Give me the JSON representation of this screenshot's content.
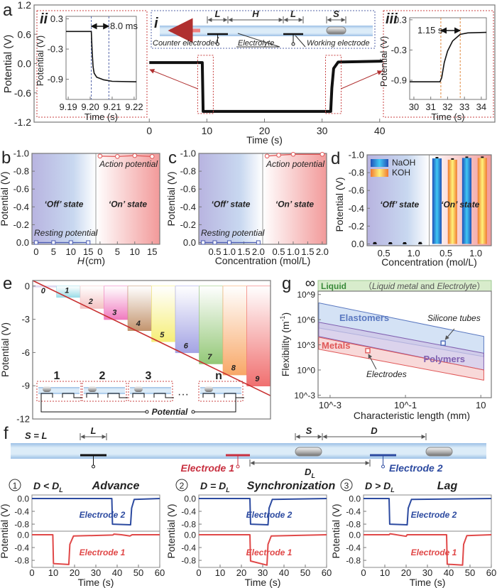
{
  "panel_labels": {
    "a": "a",
    "b": "b",
    "c": "c",
    "d": "d",
    "e": "e",
    "f": "f",
    "g": "g"
  },
  "inset_labels": {
    "i": "i",
    "ii": "ii",
    "iii": "iii"
  },
  "diagram_i": {
    "dims": [
      "L",
      "H",
      "L",
      "S"
    ],
    "counter_electrode": "Counter electrode",
    "electrolyte": "Electrolyte",
    "working_electrode": "Working electrode"
  },
  "diagram_e": {
    "units": [
      "1",
      "2",
      "3",
      "n"
    ],
    "ellipsis": "···",
    "potential": "Potential"
  },
  "diagram_f": {
    "s_eq_l": "S = L",
    "dim_L": "L",
    "dim_S": "S",
    "dim_D": "D",
    "dim_DL": "D",
    "dim_DL_sub": "L",
    "electrode1": "Electrode 1",
    "electrode2": "Electrode 2"
  },
  "colors": {
    "electrode1": "#e04848",
    "electrode2": "#2c4aa0",
    "trace": "#111111",
    "off_state": "#b4b4e0",
    "on_state": "#f29a9a",
    "naoh": "#2aa8e8",
    "koh": "#f8b040",
    "liquid": "#d8eccc"
  },
  "chart_data": [
    {
      "id": "a",
      "type": "line",
      "xlabel": "Time (s)",
      "ylabel": "Potential (V)",
      "xlim": [
        -20,
        60
      ],
      "ylim": [
        -1.2,
        1.2
      ],
      "xticks": [
        0,
        10,
        20,
        30,
        40
      ],
      "xtick_labels": [
        "0",
        "10",
        "20",
        "30",
        "40"
      ],
      "yticks": [
        1.2,
        0.6,
        0.0,
        -0.6,
        -1.2
      ],
      "ytick_labels": [
        "1.2",
        "0.6",
        "0.0",
        "-0.6",
        "-1.2"
      ],
      "series": [
        {
          "color": "#111111",
          "points": [
            [
              0,
              0.02
            ],
            [
              9.2,
              0.02
            ],
            [
              9.35,
              -0.98
            ],
            [
              31.5,
              -0.98
            ],
            [
              31.7,
              -0.5
            ],
            [
              32.0,
              -0.1
            ],
            [
              32.8,
              0.03
            ],
            [
              40.5,
              0.05
            ]
          ]
        }
      ]
    },
    {
      "id": "a_ii",
      "type": "line",
      "xlabel": "Time (s)",
      "ylabel": "Potential (V)",
      "xlim": [
        9.189,
        9.221
      ],
      "ylim": [
        -1.3,
        0.35
      ],
      "xticks": [
        9.19,
        9.2,
        9.21,
        9.22
      ],
      "xtick_labels": [
        "9.19",
        "9.20",
        "9.21",
        "9.22"
      ],
      "yticks": [
        0.3,
        -0.3,
        -0.9
      ],
      "ytick_labels": [
        "0.3",
        "-0.3",
        "-0.9"
      ],
      "annotation": "8.0 ms",
      "markers_x": [
        9.2005,
        9.2085
      ],
      "series": [
        {
          "color": "#111111",
          "points": [
            [
              9.189,
              0.05
            ],
            [
              9.2005,
              0.05
            ],
            [
              9.2009,
              -0.35
            ],
            [
              9.2013,
              -0.65
            ],
            [
              9.2018,
              -0.78
            ],
            [
              9.203,
              -0.86
            ],
            [
              9.206,
              -0.91
            ],
            [
              9.21,
              -0.94
            ],
            [
              9.221,
              -0.95
            ]
          ]
        }
      ]
    },
    {
      "id": "a_iii",
      "type": "line",
      "xlabel": "Time (s)",
      "ylabel": "Potential (V)",
      "xlim": [
        29.75,
        34.3
      ],
      "ylim": [
        -1.28,
        0.34
      ],
      "xticks": [
        30,
        31,
        32,
        33,
        34
      ],
      "xtick_labels": [
        "30",
        "31",
        "32",
        "33",
        "34"
      ],
      "yticks": [
        0.3,
        -0.3,
        -0.9
      ],
      "ytick_labels": [
        "0.3",
        "-0.3",
        "-0.9"
      ],
      "annotation": "1.15 s",
      "markers_x": [
        31.6,
        32.75
      ],
      "series": [
        {
          "color": "#111111",
          "points": [
            [
              29.75,
              -0.93
            ],
            [
              31.55,
              -0.93
            ],
            [
              31.65,
              -0.85
            ],
            [
              31.8,
              -0.55
            ],
            [
              32.0,
              -0.32
            ],
            [
              32.3,
              -0.12
            ],
            [
              32.75,
              0.01
            ],
            [
              33.2,
              0.04
            ],
            [
              34.3,
              0.05
            ]
          ]
        }
      ]
    },
    {
      "id": "b",
      "type": "line",
      "xlabel": "H",
      "xlabel_unit": " (cm)",
      "ylabel": "Potential (V)",
      "ylim": [
        0.02,
        -1.0
      ],
      "yticks": [
        -1.0,
        -0.8,
        -0.6,
        -0.4,
        -0.2,
        0.0
      ],
      "ytick_labels": [
        "-1.0",
        "-0.8",
        "-0.6",
        "-0.4",
        "-0.2",
        "0.0"
      ],
      "half_xlim": [
        -1.2,
        17.2
      ],
      "xticks": [
        0,
        5,
        10,
        15
      ],
      "xtick_labels": [
        "0",
        "5",
        "10",
        "15"
      ],
      "groups": [
        {
          "state": "‘Off’ state",
          "series": {
            "name": "Resting potential",
            "color": "#4a5ab0",
            "marker": "square",
            "x": [
              0,
              5,
              10,
              15
            ],
            "y": [
              0,
              0,
              0,
              0
            ]
          }
        },
        {
          "state": "‘On’ state",
          "series": {
            "name": "Action potential",
            "color": "#e05858",
            "marker": "circle",
            "x": [
              0,
              5,
              10,
              15
            ],
            "y": [
              -0.97,
              -0.965,
              -0.975,
              -0.965
            ]
          }
        }
      ]
    },
    {
      "id": "c",
      "type": "line",
      "xlabel": "Concentration (mol/L)",
      "ylabel": "Potential (V)",
      "ylim": [
        0.02,
        -1.0
      ],
      "yticks": [
        -1.0,
        -0.8,
        -0.6,
        -0.4,
        -0.2,
        0.0
      ],
      "ytick_labels": [
        "-1.0",
        "-0.8",
        "-0.6",
        "-0.4",
        "-0.2",
        "0.0"
      ],
      "half_xlim": [
        -0.05,
        2.15
      ],
      "xticks": [
        0.5,
        1.0,
        1.5,
        2.0
      ],
      "xtick_labels": [
        "0.5",
        "1.0",
        "1.5",
        "2.0"
      ],
      "groups": [
        {
          "state": "‘Off’ state",
          "series": {
            "name": "Resting potential",
            "color": "#4a5ab0",
            "marker": "square",
            "x": [
              0.1,
              0.5,
              1.0,
              2.0
            ],
            "y": [
              0,
              0,
              0,
              0
            ]
          }
        },
        {
          "state": "‘On’ state",
          "series": {
            "name": "Action potential",
            "color": "#e05858",
            "marker": "circle",
            "x": [
              0.1,
              0.5,
              1.0,
              2.0
            ],
            "y": [
              -0.97,
              -0.98,
              -0.99,
              -0.99
            ]
          }
        }
      ]
    },
    {
      "id": "d",
      "type": "bar",
      "xlabel": "Concentration (mol/L)",
      "ylabel": "Potential (V)",
      "ylim": [
        0.02,
        -1.0
      ],
      "yticks": [
        -1.0,
        -0.8,
        -0.6,
        -0.4,
        -0.2,
        0.0
      ],
      "ytick_labels": [
        "-1.0",
        "-0.8",
        "-0.6",
        "-0.4",
        "-0.2",
        "0.0"
      ],
      "categories": [
        "0.5",
        "1.0"
      ],
      "legend": [
        {
          "name": "NaOH",
          "color": "#2aa8e8"
        },
        {
          "name": "KOH",
          "color": "#f8b040"
        }
      ],
      "legend_placement": "top-left",
      "groups": [
        {
          "state": "‘Off’ state",
          "series": [
            {
              "name": "NaOH",
              "values": [
                -0.005,
                -0.004
              ]
            },
            {
              "name": "KOH",
              "values": [
                -0.004,
                -0.006
              ]
            }
          ]
        },
        {
          "state": "‘On’ state",
          "series": [
            {
              "name": "NaOH",
              "values": [
                -0.96,
                -0.965
              ]
            },
            {
              "name": "KOH",
              "values": [
                -0.945,
                -0.965
              ]
            }
          ]
        }
      ]
    },
    {
      "id": "e",
      "type": "bar",
      "ylabel": "Potential (V)",
      "ylim": [
        -12,
        0.5
      ],
      "yticks": [
        0,
        -3,
        -6,
        -9,
        -12
      ],
      "ytick_labels": [
        "0",
        "-3",
        "-6",
        "-9",
        "-12"
      ],
      "categories": [
        "0",
        "1",
        "2",
        "3",
        "4",
        "5",
        "6",
        "7",
        "8",
        "9"
      ],
      "values": [
        0,
        -1,
        -2,
        -3,
        -4,
        -5,
        -6,
        -7,
        -8,
        -9
      ],
      "bar_colors": [
        "#dcd4ee",
        "#9edde8",
        "#f4c4c4",
        "#f07cc0",
        "#c49670",
        "#f6ee78",
        "#a4a4e4",
        "#94c878",
        "#f8a868",
        "#f07070"
      ],
      "trend_line": {
        "color": "#c83030",
        "points": [
          [
            0,
            0.5
          ],
          [
            10,
            -9.9
          ]
        ]
      }
    },
    {
      "id": "g",
      "type": "scatter",
      "xlabel": "Characteristic length (mm)",
      "ylabel": "Flexibility (m",
      "ylabel_sup": "-1",
      "ylabel_end": ")",
      "xscale": "log",
      "yscale": "log",
      "xlim": [
        0.00048,
        19
      ],
      "ylim": [
        0.0005,
        2500000000.0
      ],
      "xticks": [
        0.001,
        0.1,
        10
      ],
      "xtick_labels": [
        "10^-3",
        "10^-1",
        "10"
      ],
      "yticks": [
        1000000000.0,
        1000000.0,
        1000.0,
        1,
        0.001
      ],
      "ytick_labels": [
        "10^9",
        "10^6",
        "10^3",
        "10^0",
        "10^-3"
      ],
      "infinity_label": "∞",
      "liquid_band": {
        "label": "Liquid",
        "note_open": "（",
        "note_italic1": "Liquid metal",
        "note_mid": " and ",
        "note_italic2": "Electrolyte",
        "note_close": "）"
      },
      "regions": [
        {
          "name": "Elastomers",
          "color": "#5a78c0",
          "fill": "#c6d8f2",
          "points": [
            [
              0.0005,
              100000000.0
            ],
            [
              12,
              10000.0
            ],
            [
              12,
              40
            ],
            [
              0.0005,
              100000.0
            ]
          ]
        },
        {
          "name": "Polymers",
          "color": "#8060b0",
          "fill": "#cfc4e6",
          "points": [
            [
              0.0005,
              500000.0
            ],
            [
              12,
              100
            ],
            [
              12,
              1
            ],
            [
              0.0005,
              10000.0
            ]
          ]
        },
        {
          "name": "Metals",
          "color": "#e05858",
          "fill": "#f6cccc",
          "points": [
            [
              0.0005,
              8000.0
            ],
            [
              12,
              1
            ],
            [
              12,
              0.06
            ],
            [
              0.0005,
              300
            ]
          ]
        }
      ],
      "points": [
        {
          "name": "Silicone tubes",
          "x": 1.0,
          "y": 1600,
          "color": "#4a68b8"
        },
        {
          "name": "Electrodes",
          "x": 0.01,
          "y": 200,
          "color": "#e05858"
        }
      ]
    },
    {
      "id": "f1",
      "type": "line",
      "index": "1",
      "condition": "D < D",
      "condition_sub": "L",
      "title": "Advance",
      "xlabel": "Time (s)",
      "ylabel": "Potential (V)",
      "xlim": [
        0,
        60
      ],
      "ylim": [
        -1.02,
        0.11
      ],
      "xticks": [
        0,
        10,
        20,
        30,
        40,
        50,
        60
      ],
      "xtick_labels": [
        "0",
        "10",
        "20",
        "30",
        "40",
        "50",
        "60"
      ],
      "yticks": [
        0.0,
        -0.4,
        -0.8
      ],
      "ytick_labels": [
        "0.0",
        "-0.4",
        "-0.8"
      ],
      "series": [
        {
          "name": "Electrode 2",
          "color": "#2c4aa0",
          "points": [
            [
              0,
              0
            ],
            [
              37.5,
              0
            ],
            [
              37.8,
              -0.8
            ],
            [
              46.3,
              -0.82
            ],
            [
              46.8,
              -0.3
            ],
            [
              48,
              -0.03
            ],
            [
              60,
              0
            ]
          ]
        },
        {
          "name": "Electrode 1",
          "color": "#e04848",
          "points": [
            [
              0,
              0
            ],
            [
              9.8,
              0
            ],
            [
              10.1,
              -0.9
            ],
            [
              17.3,
              -0.93
            ],
            [
              17.8,
              -0.3
            ],
            [
              19.5,
              -0.04
            ],
            [
              38,
              -0.01
            ],
            [
              38.5,
              0.02
            ],
            [
              42,
              0
            ],
            [
              46,
              -0.04
            ],
            [
              47,
              0
            ],
            [
              60,
              0
            ]
          ]
        }
      ]
    },
    {
      "id": "f2",
      "type": "line",
      "index": "2",
      "condition": "D = D",
      "condition_sub": "L",
      "title": "Synchronization",
      "xlabel": "Time (s)",
      "ylabel": "Potential (V)",
      "xlim": [
        0,
        60
      ],
      "ylim": [
        -1.02,
        0.11
      ],
      "xticks": [
        0,
        10,
        20,
        30,
        40,
        50,
        60
      ],
      "xtick_labels": [
        "0",
        "10",
        "20",
        "30",
        "40",
        "50",
        "60"
      ],
      "yticks": [
        0.0,
        -0.4,
        -0.8
      ],
      "ytick_labels": [
        "0.0",
        "-0.4",
        "-0.8"
      ],
      "series": [
        {
          "name": "Electrode 2",
          "color": "#2c4aa0",
          "points": [
            [
              0,
              0
            ],
            [
              24,
              0
            ],
            [
              24.3,
              -0.8
            ],
            [
              32.5,
              -0.82
            ],
            [
              33,
              -0.3
            ],
            [
              34.5,
              -0.03
            ],
            [
              60,
              0
            ]
          ]
        },
        {
          "name": "Electrode 1",
          "color": "#e04848",
          "points": [
            [
              0,
              0
            ],
            [
              24,
              0
            ],
            [
              24.3,
              -0.82
            ],
            [
              32,
              -0.95
            ],
            [
              32.5,
              -0.3
            ],
            [
              34,
              -0.04
            ],
            [
              60,
              0
            ]
          ]
        }
      ]
    },
    {
      "id": "f3",
      "type": "line",
      "index": "3",
      "condition": "D > D",
      "condition_sub": "L",
      "title": "Lag",
      "xlabel": "Time (s)",
      "ylabel": "Potential (V)",
      "xlim": [
        0,
        60
      ],
      "ylim": [
        -1.02,
        0.11
      ],
      "xticks": [
        0,
        10,
        20,
        30,
        40,
        50,
        60
      ],
      "xtick_labels": [
        "0",
        "10",
        "20",
        "30",
        "40",
        "50",
        "60"
      ],
      "yticks": [
        0.0,
        -0.4,
        -0.8
      ],
      "ytick_labels": [
        "0.0",
        "-0.4",
        "-0.8"
      ],
      "series": [
        {
          "name": "Electrode 2",
          "color": "#2c4aa0",
          "points": [
            [
              0,
              0
            ],
            [
              12,
              0
            ],
            [
              12.3,
              -0.8
            ],
            [
              20.5,
              -0.82
            ],
            [
              21,
              -0.3
            ],
            [
              22.5,
              -0.03
            ],
            [
              60,
              0
            ]
          ]
        },
        {
          "name": "Electrode 1",
          "color": "#e04848",
          "points": [
            [
              0,
              0
            ],
            [
              12,
              0
            ],
            [
              12.5,
              0.03
            ],
            [
              20,
              -0.05
            ],
            [
              20.5,
              0
            ],
            [
              39,
              0
            ],
            [
              39.3,
              -0.92
            ],
            [
              46.5,
              -0.95
            ],
            [
              47,
              -0.3
            ],
            [
              48.5,
              -0.03
            ],
            [
              60,
              0
            ]
          ]
        }
      ]
    }
  ]
}
